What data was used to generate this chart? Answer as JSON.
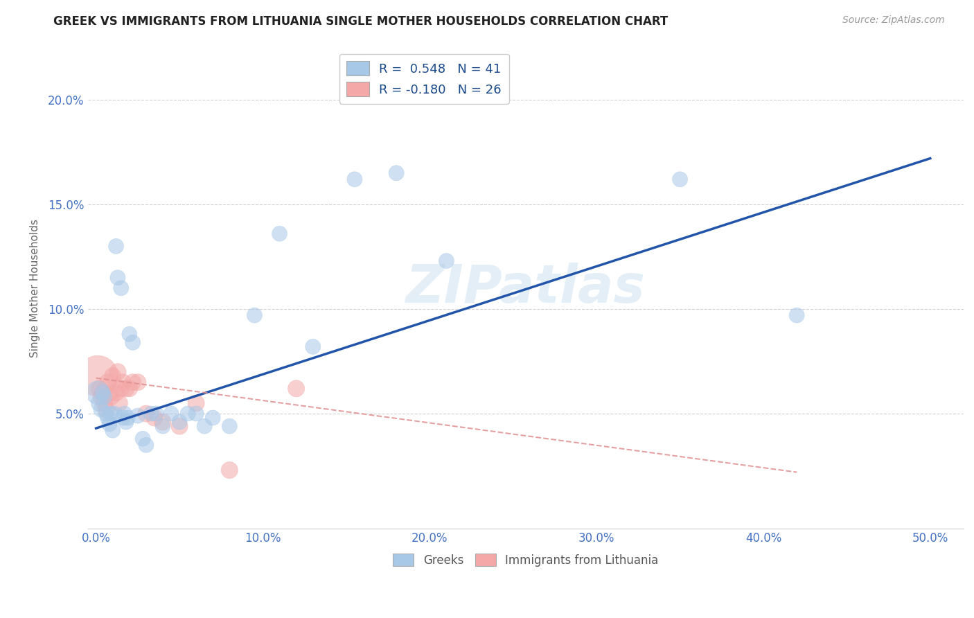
{
  "title": "GREEK VS IMMIGRANTS FROM LITHUANIA SINGLE MOTHER HOUSEHOLDS CORRELATION CHART",
  "source": "Source: ZipAtlas.com",
  "xlabel_ticks": [
    "0.0%",
    "10.0%",
    "20.0%",
    "30.0%",
    "40.0%",
    "50.0%"
  ],
  "xlabel_values": [
    0.0,
    0.1,
    0.2,
    0.3,
    0.4,
    0.5
  ],
  "ylabel_ticks": [
    "5.0%",
    "10.0%",
    "15.0%",
    "20.0%"
  ],
  "ylabel_values": [
    0.05,
    0.1,
    0.15,
    0.2
  ],
  "xlim": [
    -0.005,
    0.52
  ],
  "ylim": [
    -0.005,
    0.225
  ],
  "legend_label1": "Greeks",
  "legend_label2": "Immigrants from Lithuania",
  "R1": 0.548,
  "N1": 41,
  "R2": -0.18,
  "N2": 26,
  "blue_color": "#a8c8e8",
  "pink_color": "#f4a8a8",
  "line_blue": "#2255aa",
  "line_pink": "#e09090",
  "watermark": "ZIPatlas",
  "blue_line_x0": 0.0,
  "blue_line_y0": 0.043,
  "blue_line_x1": 0.5,
  "blue_line_y1": 0.172,
  "pink_line_x0": 0.0,
  "pink_line_y0": 0.067,
  "pink_line_x1": 0.42,
  "pink_line_y1": 0.022,
  "greek_x": [
    0.001,
    0.002,
    0.003,
    0.004,
    0.005,
    0.006,
    0.007,
    0.008,
    0.009,
    0.01,
    0.011,
    0.012,
    0.013,
    0.015,
    0.016,
    0.017,
    0.018,
    0.019,
    0.02,
    0.022,
    0.025,
    0.028,
    0.03,
    0.033,
    0.036,
    0.04,
    0.045,
    0.05,
    0.055,
    0.06,
    0.065,
    0.07,
    0.08,
    0.095,
    0.11,
    0.13,
    0.155,
    0.18,
    0.21,
    0.35,
    0.42
  ],
  "greek_y": [
    0.06,
    0.055,
    0.052,
    0.06,
    0.058,
    0.05,
    0.048,
    0.045,
    0.05,
    0.042,
    0.05,
    0.13,
    0.115,
    0.11,
    0.048,
    0.05,
    0.046,
    0.048,
    0.088,
    0.084,
    0.049,
    0.038,
    0.035,
    0.05,
    0.05,
    0.044,
    0.05,
    0.046,
    0.05,
    0.05,
    0.044,
    0.048,
    0.044,
    0.097,
    0.136,
    0.082,
    0.162,
    0.165,
    0.123,
    0.162,
    0.097
  ],
  "greek_size": [
    600,
    300,
    250,
    250,
    250,
    250,
    250,
    250,
    250,
    250,
    250,
    250,
    250,
    250,
    250,
    250,
    250,
    250,
    250,
    250,
    250,
    250,
    250,
    250,
    250,
    250,
    250,
    250,
    250,
    250,
    250,
    250,
    250,
    250,
    250,
    250,
    250,
    250,
    250,
    250,
    250
  ],
  "lithu_x": [
    0.001,
    0.002,
    0.003,
    0.004,
    0.005,
    0.006,
    0.007,
    0.008,
    0.009,
    0.01,
    0.012,
    0.013,
    0.014,
    0.015,
    0.016,
    0.018,
    0.02,
    0.022,
    0.025,
    0.03,
    0.035,
    0.04,
    0.05,
    0.06,
    0.08,
    0.12
  ],
  "lithu_y": [
    0.068,
    0.062,
    0.058,
    0.06,
    0.055,
    0.052,
    0.065,
    0.06,
    0.058,
    0.068,
    0.06,
    0.07,
    0.055,
    0.062,
    0.065,
    0.062,
    0.062,
    0.065,
    0.065,
    0.05,
    0.048,
    0.046,
    0.044,
    0.055,
    0.023,
    0.062
  ],
  "lithu_size": [
    1800,
    300,
    300,
    300,
    300,
    300,
    300,
    300,
    300,
    300,
    300,
    300,
    300,
    300,
    300,
    300,
    300,
    300,
    300,
    300,
    300,
    300,
    300,
    300,
    300,
    300
  ]
}
